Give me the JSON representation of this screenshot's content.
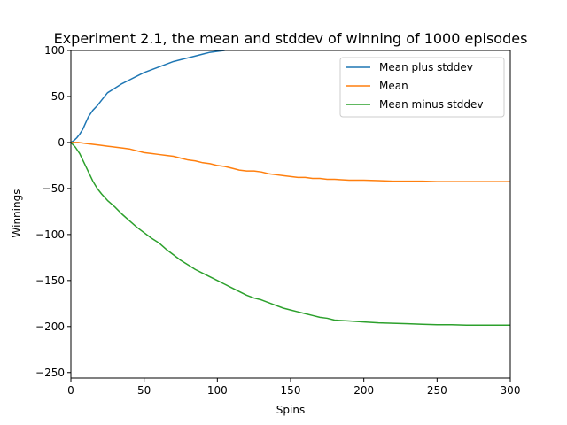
{
  "chart_data": {
    "type": "line",
    "title": "Experiment 2.1, the mean and stddev of winning of 1000 episodes",
    "xlabel": "Spins",
    "ylabel": "Winnings",
    "xlim": [
      0,
      300
    ],
    "ylim": [
      -256,
      100
    ],
    "xticks": [
      0,
      50,
      100,
      150,
      200,
      250,
      300
    ],
    "yticks": [
      100,
      50,
      0,
      -50,
      -100,
      -150,
      -200,
      -250
    ],
    "tick_labels": {
      "x": [
        "0",
        "50",
        "100",
        "150",
        "200",
        "250",
        "300"
      ],
      "y": [
        "100",
        "50",
        "0",
        "−50",
        "−100",
        "−150",
        "−200",
        "−250"
      ]
    },
    "grid": false,
    "legend_position": "upper right",
    "series": [
      {
        "name": "Mean plus stddev",
        "color": "#1f77b4",
        "x": [
          0,
          2,
          4,
          6,
          8,
          10,
          12,
          15,
          18,
          20,
          25,
          30,
          35,
          40,
          45,
          50,
          55,
          60,
          65,
          70,
          75,
          80,
          85,
          90,
          95,
          100,
          105
        ],
        "y": [
          0,
          2,
          5,
          9,
          14,
          21,
          28,
          35,
          40,
          44,
          54,
          59,
          64,
          68,
          72,
          76,
          79,
          82,
          85,
          88,
          90,
          92,
          94,
          96,
          98,
          99,
          100
        ]
      },
      {
        "name": "Mean",
        "color": "#ff7f0e",
        "x": [
          0,
          5,
          10,
          15,
          20,
          25,
          30,
          35,
          40,
          45,
          50,
          55,
          60,
          65,
          70,
          75,
          80,
          85,
          90,
          95,
          100,
          105,
          110,
          115,
          120,
          125,
          130,
          135,
          140,
          145,
          150,
          155,
          160,
          165,
          170,
          175,
          180,
          190,
          200,
          210,
          220,
          230,
          240,
          250,
          260,
          270,
          280,
          290,
          300
        ],
        "y": [
          0,
          0,
          -1,
          -2,
          -3,
          -4,
          -5,
          -6,
          -7,
          -9,
          -11,
          -12,
          -13,
          -14,
          -15,
          -17,
          -19,
          -20,
          -22,
          -23,
          -25,
          -26,
          -28,
          -30,
          -31,
          -31,
          -32,
          -34,
          -35,
          -36,
          -37,
          -38,
          -38,
          -39,
          -39,
          -40,
          -40,
          -41,
          -41,
          -41.5,
          -42,
          -42,
          -42,
          -42.5,
          -42.5,
          -42.5,
          -42.5,
          -42.5,
          -42.5
        ]
      },
      {
        "name": "Mean minus stddev",
        "color": "#2ca02c",
        "x": [
          0,
          3,
          6,
          9,
          12,
          15,
          18,
          21,
          25,
          30,
          35,
          40,
          45,
          50,
          55,
          60,
          65,
          70,
          75,
          80,
          85,
          90,
          95,
          100,
          105,
          110,
          115,
          120,
          125,
          130,
          135,
          140,
          145,
          150,
          155,
          160,
          165,
          170,
          175,
          180,
          190,
          200,
          210,
          220,
          230,
          240,
          250,
          260,
          270,
          280,
          290,
          300
        ],
        "y": [
          0,
          -5,
          -12,
          -22,
          -32,
          -42,
          -50,
          -56,
          -63,
          -70,
          -78,
          -85,
          -92,
          -98,
          -104,
          -109,
          -116,
          -122,
          -128,
          -133,
          -138,
          -142,
          -146,
          -150,
          -154,
          -158,
          -162,
          -166,
          -169,
          -171,
          -174,
          -177,
          -180,
          -182,
          -184,
          -186,
          -188,
          -190,
          -191,
          -193,
          -194,
          -195,
          -196,
          -196.5,
          -197,
          -197.5,
          -198,
          -198,
          -198.5,
          -198.5,
          -198.5,
          -198.5
        ]
      }
    ]
  }
}
